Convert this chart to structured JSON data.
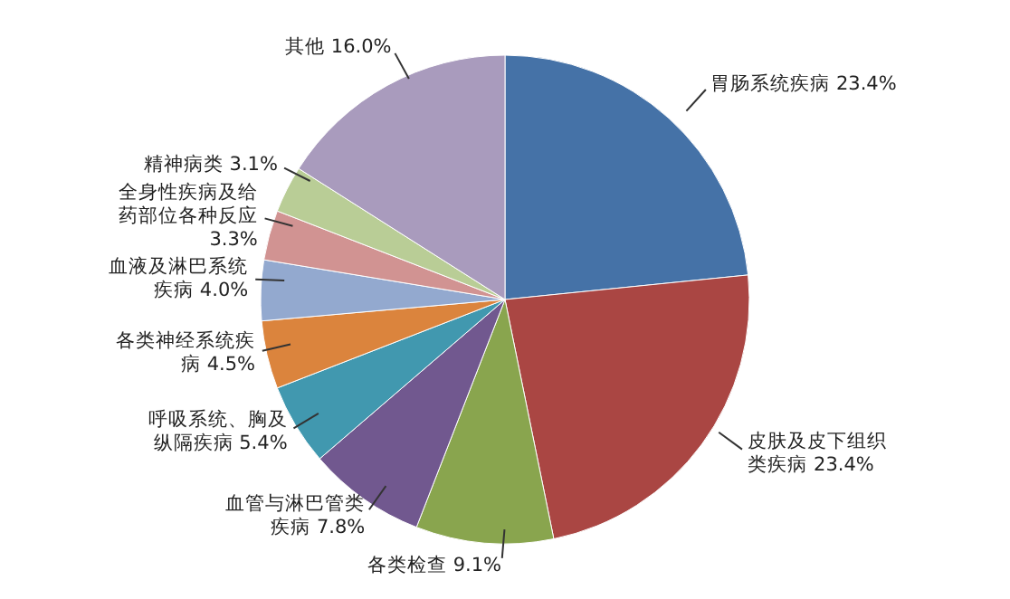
{
  "chart_data": {
    "type": "pie",
    "categories": [
      "胃肠系统疾病",
      "皮肤及皮下组织类疾病",
      "各类检查",
      "血管与淋巴管类疾病",
      "呼吸系统、胸及纵隔疾病",
      "各类神经系统疾病",
      "血液及淋巴系统疾病",
      "全身性疾病及给药部位各种反应",
      "精神病类",
      "其他"
    ],
    "values": [
      23.4,
      23.4,
      9.1,
      7.8,
      5.4,
      4.5,
      4.0,
      3.3,
      3.1,
      16.0
    ],
    "value_labels": [
      "23.4%",
      "23.4%",
      "9.1%",
      "7.8%",
      "5.4%",
      "4.5%",
      "4.0%",
      "3.3%",
      "3.1%",
      "16.0%"
    ],
    "colors": [
      "#4572a7",
      "#aa4643",
      "#89a54e",
      "#71588f",
      "#4198af",
      "#db843d",
      "#93a9cf",
      "#d19392",
      "#b9cd96",
      "#a99bbd"
    ]
  }
}
